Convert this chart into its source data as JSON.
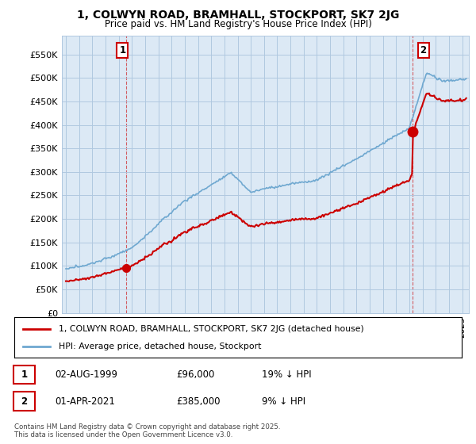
{
  "title": "1, COLWYN ROAD, BRAMHALL, STOCKPORT, SK7 2JG",
  "subtitle": "Price paid vs. HM Land Registry's House Price Index (HPI)",
  "ylabel_ticks": [
    "£0",
    "£50K",
    "£100K",
    "£150K",
    "£200K",
    "£250K",
    "£300K",
    "£350K",
    "£400K",
    "£450K",
    "£500K",
    "£550K"
  ],
  "ytick_vals": [
    0,
    50000,
    100000,
    150000,
    200000,
    250000,
    300000,
    350000,
    400000,
    450000,
    500000,
    550000
  ],
  "ylim": [
    0,
    590000
  ],
  "xlim_start": 1994.7,
  "xlim_end": 2025.5,
  "sale1_year": 1999.58,
  "sale1_price": 96000,
  "sale2_year": 2021.25,
  "sale2_price": 385000,
  "sale_color": "#cc0000",
  "hpi_color": "#6fa8d0",
  "plot_bg_color": "#dce9f5",
  "legend_entry1": "1, COLWYN ROAD, BRAMHALL, STOCKPORT, SK7 2JG (detached house)",
  "legend_entry2": "HPI: Average price, detached house, Stockport",
  "annotation1_label": "1",
  "annotation2_label": "2",
  "table_row1": [
    "1",
    "02-AUG-1999",
    "£96,000",
    "19% ↓ HPI"
  ],
  "table_row2": [
    "2",
    "01-APR-2021",
    "£385,000",
    "9% ↓ HPI"
  ],
  "footer": "Contains HM Land Registry data © Crown copyright and database right 2025.\nThis data is licensed under the Open Government Licence v3.0.",
  "background_color": "#ffffff",
  "grid_color": "#b0c8e0"
}
